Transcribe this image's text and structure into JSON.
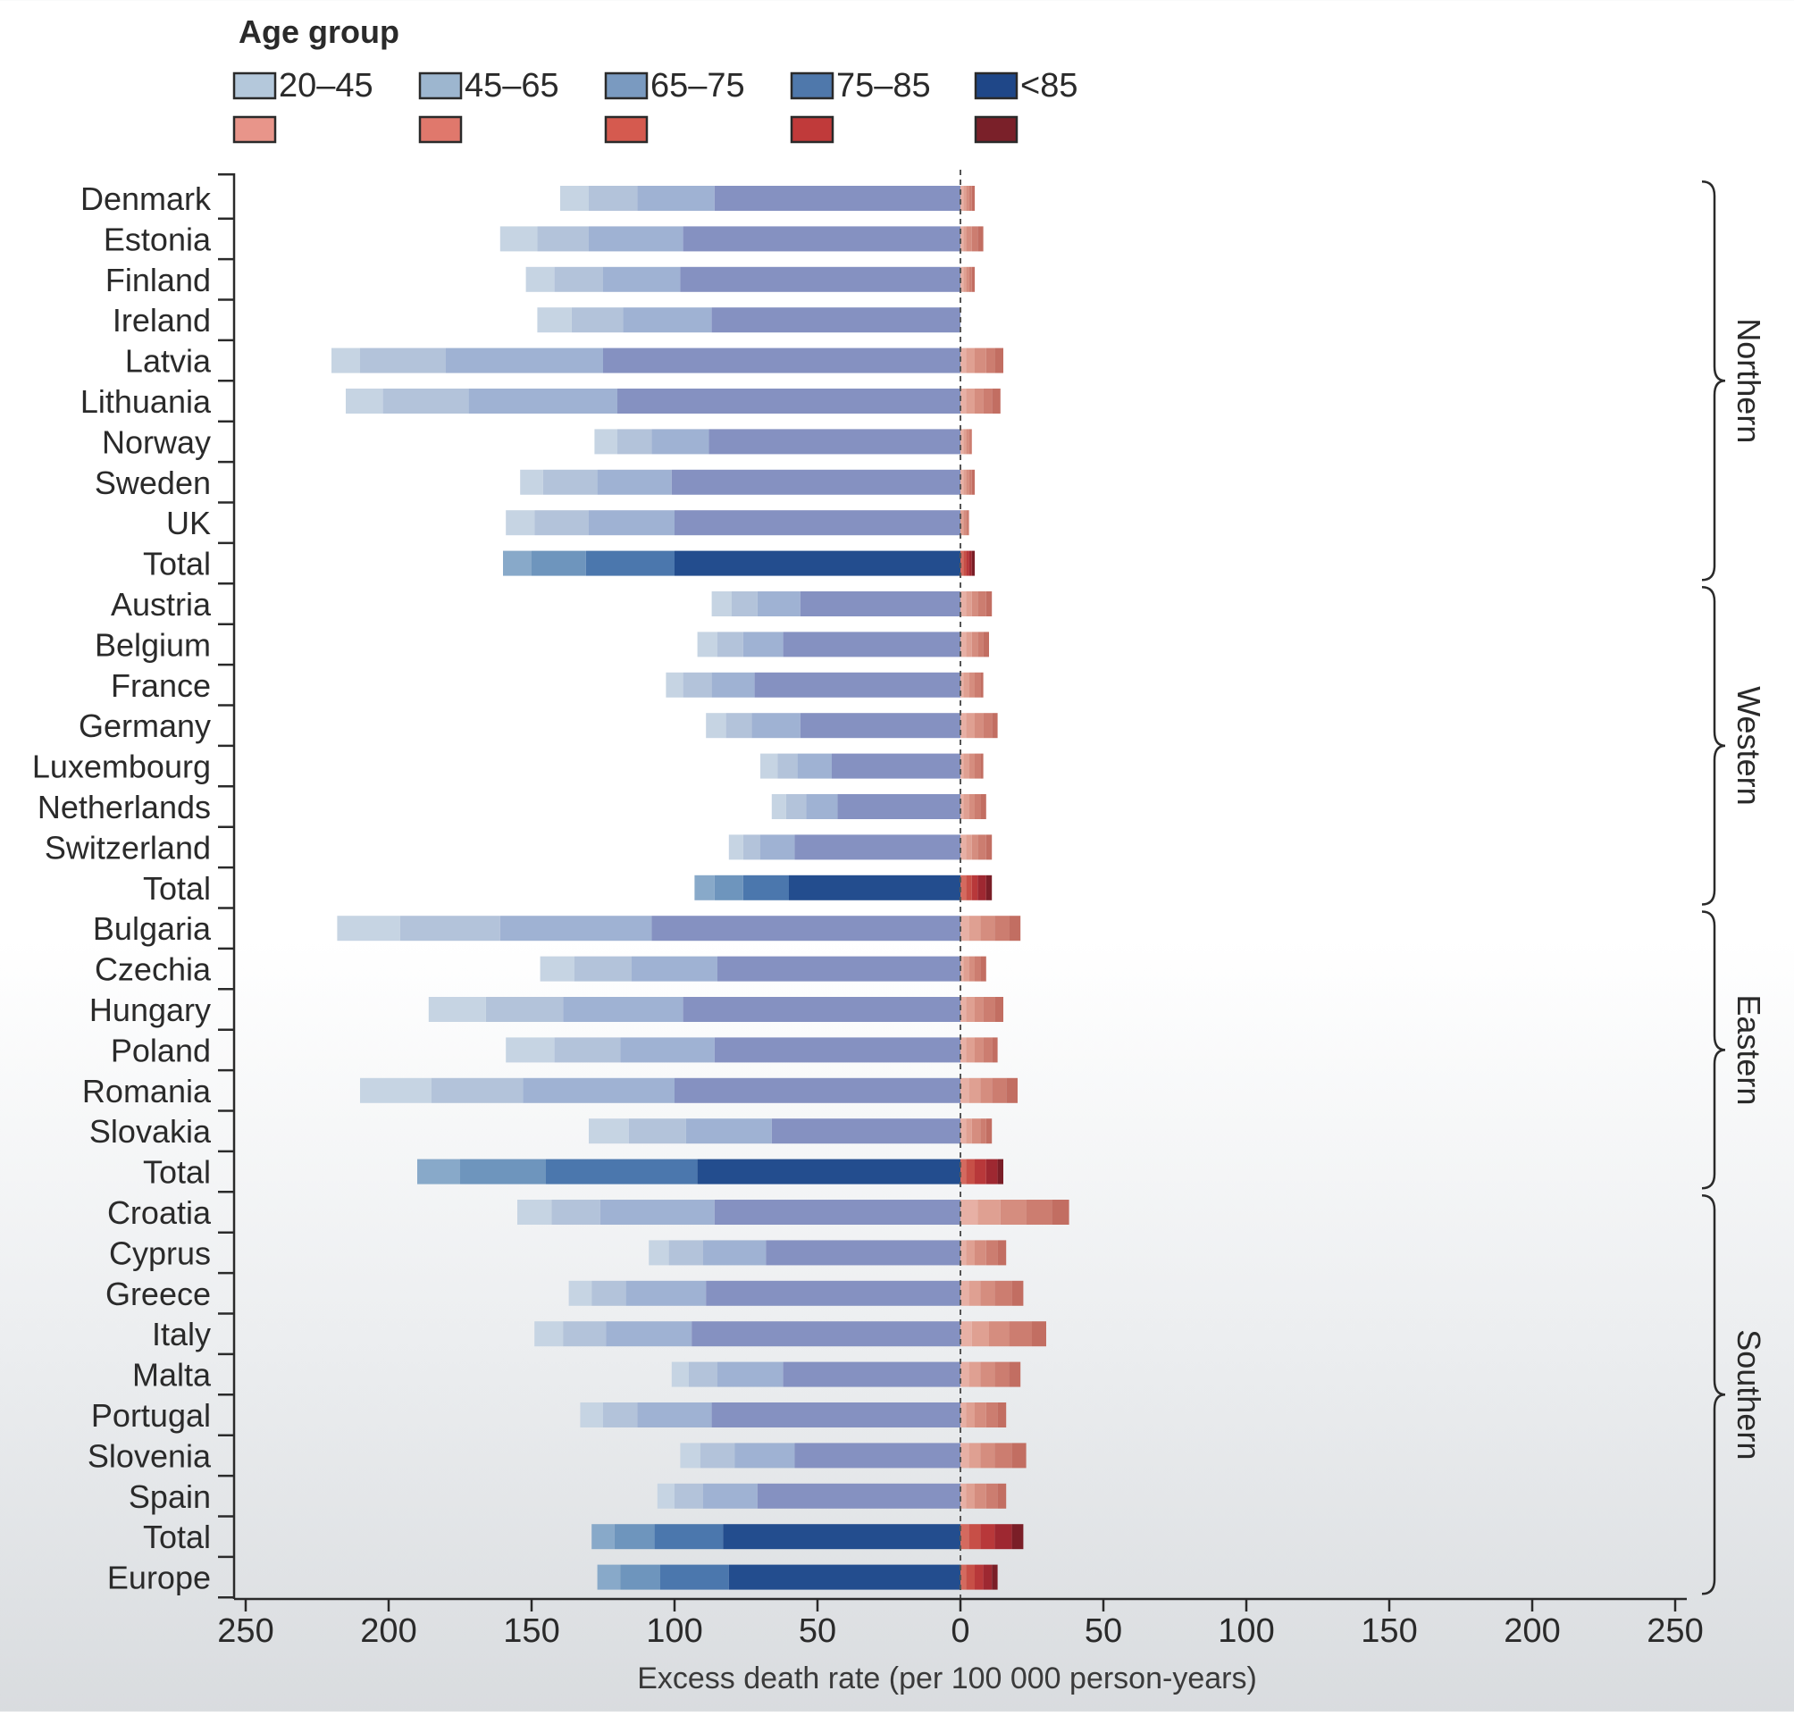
{
  "chart_data": {
    "type": "bar",
    "orientation": "horizontal",
    "stacked": true,
    "diverging": true,
    "legend": {
      "title": "Age group",
      "placement": "top-left",
      "entries": [
        "20–45",
        "45–65",
        "65–75",
        "75–85",
        "<85"
      ],
      "negative_colors": [
        "#b4c8db",
        "#9db6cf",
        "#7a9ac0",
        "#4f78ab",
        "#1f4788"
      ],
      "positive_colors": [
        "#e8958a",
        "#e0786c",
        "#d55a4f",
        "#c03a3a",
        "#7a2029"
      ]
    },
    "xlabel": "Excess death rate (per 100 000 person-years)",
    "xlim": [
      -250,
      250
    ],
    "xticks": [
      -250,
      -200,
      -150,
      -100,
      -50,
      0,
      50,
      100,
      150,
      200,
      250
    ],
    "xtick_labels": [
      "250",
      "200",
      "150",
      "100",
      "50",
      "0",
      "50",
      "100",
      "150",
      "200",
      "250"
    ],
    "grid": false,
    "reference_line": 0,
    "categories": [
      "Denmark",
      "Estonia",
      "Finland",
      "Ireland",
      "Latvia",
      "Lithuania",
      "Norway",
      "Sweden",
      "UK",
      "Total",
      "Austria",
      "Belgium",
      "France",
      "Germany",
      "Luxembourg",
      "Netherlands",
      "Switzerland",
      "Total",
      "Bulgaria",
      "Czechia",
      "Hungary",
      "Poland",
      "Romania",
      "Slovakia",
      "Total",
      "Croatia",
      "Cyprus",
      "Greece",
      "Italy",
      "Malta",
      "Portugal",
      "Slovenia",
      "Spain",
      "Total",
      "Europe"
    ],
    "is_total": [
      false,
      false,
      false,
      false,
      false,
      false,
      false,
      false,
      false,
      true,
      false,
      false,
      false,
      false,
      false,
      false,
      false,
      true,
      false,
      false,
      false,
      false,
      false,
      false,
      true,
      false,
      false,
      false,
      false,
      false,
      false,
      false,
      false,
      true,
      true
    ],
    "negative_series": [
      {
        "name": "20–45",
        "values": [
          -10,
          -13,
          -10,
          -12,
          -10,
          -13,
          -8,
          -8,
          -10,
          -10,
          -7,
          -7,
          -6,
          -7,
          -6,
          -5,
          -5,
          -7,
          -22,
          -12,
          -20,
          -17,
          -25,
          -14,
          -15,
          -12,
          -7,
          -8,
          -10,
          -6,
          -8,
          -7,
          -6,
          -8,
          -8
        ]
      },
      {
        "name": "45–65",
        "values": [
          -17,
          -18,
          -17,
          -18,
          -30,
          -30,
          -12,
          -19,
          -19,
          -19,
          -9,
          -9,
          -10,
          -9,
          -7,
          -7,
          -6,
          -10,
          -35,
          -20,
          -27,
          -23,
          -32,
          -20,
          -30,
          -17,
          -12,
          -12,
          -15,
          -10,
          -12,
          -12,
          -10,
          -14,
          -14
        ]
      },
      {
        "name": "65–75",
        "values": [
          -27,
          -33,
          -27,
          -31,
          -55,
          -52,
          -20,
          -26,
          -30,
          -31,
          -15,
          -14,
          -15,
          -17,
          -12,
          -11,
          -12,
          -16,
          -53,
          -30,
          -42,
          -33,
          -53,
          -30,
          -53,
          -40,
          -22,
          -28,
          -30,
          -23,
          -26,
          -21,
          -19,
          -24,
          -24
        ]
      },
      {
        "name": "75–85",
        "values": [
          -86,
          -97,
          -98,
          -87,
          -125,
          -120,
          -88,
          -101,
          -100,
          -100,
          -56,
          -62,
          -72,
          -56,
          -45,
          -43,
          -58,
          -60,
          -108,
          -85,
          -97,
          -86,
          -100,
          -66,
          -92,
          -86,
          -68,
          -89,
          -94,
          -62,
          -87,
          -58,
          -71,
          -83,
          -81
        ]
      }
    ],
    "positive_series": [
      {
        "name": "20–45",
        "values": [
          1,
          1,
          1,
          0,
          2,
          2,
          1,
          1,
          0,
          1,
          2,
          2,
          1,
          2,
          1,
          1,
          2,
          2,
          3,
          1,
          2,
          2,
          3,
          2,
          2,
          6,
          2,
          3,
          4,
          3,
          2,
          3,
          2,
          3,
          2
        ]
      },
      {
        "name": "45–65",
        "values": [
          1,
          1,
          1,
          0,
          3,
          3,
          1,
          1,
          1,
          1,
          2,
          2,
          2,
          3,
          2,
          2,
          2,
          2,
          4,
          2,
          3,
          3,
          4,
          2,
          3,
          8,
          3,
          4,
          6,
          4,
          3,
          4,
          3,
          4,
          3
        ]
      },
      {
        "name": "65–75",
        "values": [
          1,
          2,
          1,
          0,
          4,
          3,
          1,
          1,
          1,
          1,
          2,
          2,
          2,
          3,
          2,
          2,
          2,
          2,
          5,
          2,
          3,
          3,
          4,
          3,
          4,
          9,
          4,
          5,
          7,
          5,
          4,
          5,
          4,
          5,
          3
        ]
      },
      {
        "name": "75–85",
        "values": [
          1,
          2,
          1,
          0,
          3,
          3,
          1,
          1,
          1,
          1,
          3,
          2,
          2,
          3,
          2,
          2,
          3,
          3,
          5,
          2,
          4,
          3,
          5,
          2,
          4,
          9,
          4,
          6,
          8,
          5,
          4,
          6,
          4,
          6,
          3
        ]
      },
      {
        "name": "<85",
        "values": [
          1,
          2,
          1,
          0,
          3,
          3,
          0,
          1,
          0,
          1,
          2,
          2,
          1,
          2,
          1,
          2,
          2,
          2,
          4,
          2,
          3,
          2,
          4,
          2,
          2,
          6,
          3,
          4,
          5,
          4,
          3,
          5,
          3,
          4,
          2
        ]
      }
    ],
    "region_brackets": [
      {
        "label": "Northern",
        "start_index": 0,
        "end_index": 9
      },
      {
        "label": "Western",
        "start_index": 10,
        "end_index": 17
      },
      {
        "label": "Eastern",
        "start_index": 18,
        "end_index": 24
      },
      {
        "label": "Southern",
        "start_index": 25,
        "end_index": 34
      }
    ],
    "individual_bar_colors": {
      "negative_stack": [
        "#c6d4e3",
        "#b3c3da",
        "#9fb2d3",
        "#8591c1"
      ],
      "positive": "#d89384"
    }
  }
}
